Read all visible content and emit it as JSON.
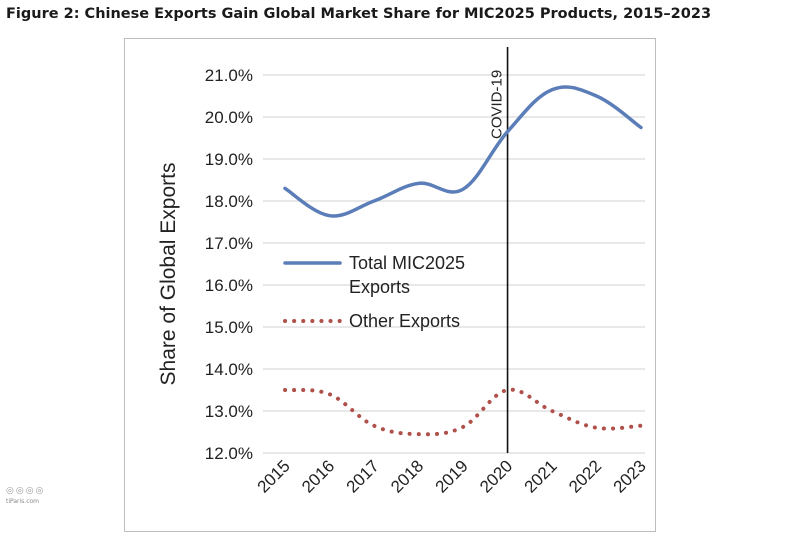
{
  "title": "Figure 2: Chinese Exports Gain Global Market Share for MIC2025 Products, 2015–2023",
  "watermark": {
    "glyphs": "◎◎◎◎",
    "text": "tiParis.com"
  },
  "chart_data": {
    "type": "line",
    "title": "",
    "xlabel": "",
    "ylabel": "Share of Global Exports",
    "x": [
      "2015",
      "2016",
      "2017",
      "2018",
      "2019",
      "2020",
      "2021",
      "2022",
      "2023"
    ],
    "ylim": [
      12.0,
      21.0
    ],
    "yticks": [
      "12.0%",
      "13.0%",
      "14.0%",
      "15.0%",
      "16.0%",
      "17.0%",
      "18.0%",
      "19.0%",
      "20.0%",
      "21.0%"
    ],
    "grid": true,
    "legend_position": "center-left",
    "series": [
      {
        "name": "Total MIC2025 Exports",
        "legend_lines": [
          "Total MIC2025",
          "Exports"
        ],
        "style": "solid",
        "color": "#5B7DB8",
        "values": [
          18.3,
          17.65,
          18.0,
          18.42,
          18.28,
          19.65,
          20.65,
          20.5,
          19.75
        ]
      },
      {
        "name": "Other Exports",
        "legend_lines": [
          "Other Exports"
        ],
        "style": "dotted",
        "color": "#B0504A",
        "values": [
          13.5,
          13.4,
          12.65,
          12.45,
          12.62,
          13.5,
          13.0,
          12.6,
          12.65
        ]
      }
    ],
    "annotations": [
      {
        "label": "COVID-19",
        "x": 2019.99,
        "type": "vertical-line"
      }
    ]
  }
}
